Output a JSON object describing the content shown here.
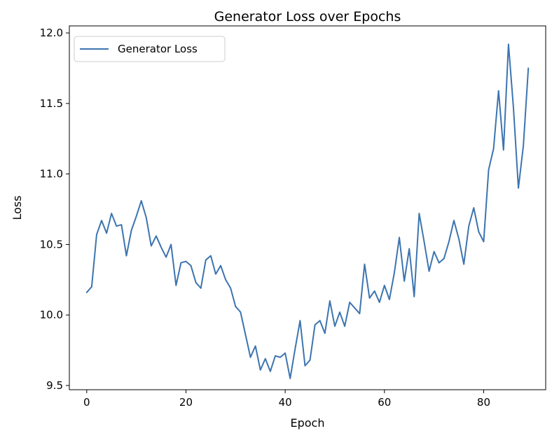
{
  "chart_data": {
    "type": "line",
    "title": "Generator Loss over Epochs",
    "xlabel": "Epoch",
    "ylabel": "Loss",
    "xlim": [
      -3.5,
      92.5
    ],
    "ylim": [
      9.47,
      12.05
    ],
    "xticks": [
      0,
      20,
      40,
      60,
      80
    ],
    "yticks": [
      9.5,
      10.0,
      10.5,
      11.0,
      11.5,
      12.0
    ],
    "ytick_labels": [
      "9.5",
      "10.0",
      "10.5",
      "11.0",
      "11.5",
      "12.0"
    ],
    "grid": false,
    "legend": {
      "position": "upper-left"
    },
    "series": [
      {
        "name": "Generator Loss",
        "color": "#3c74b0",
        "x": [
          0,
          1,
          2,
          3,
          4,
          5,
          6,
          7,
          8,
          9,
          10,
          11,
          12,
          13,
          14,
          15,
          16,
          17,
          18,
          19,
          20,
          21,
          22,
          23,
          24,
          25,
          26,
          27,
          28,
          29,
          30,
          31,
          32,
          33,
          34,
          35,
          36,
          37,
          38,
          39,
          40,
          41,
          42,
          43,
          44,
          45,
          46,
          47,
          48,
          49,
          50,
          51,
          52,
          53,
          54,
          55,
          56,
          57,
          58,
          59,
          60,
          61,
          62,
          63,
          64,
          65,
          66,
          67,
          68,
          69,
          70,
          71,
          72,
          73,
          74,
          75,
          76,
          77,
          78,
          79,
          80,
          81,
          82,
          83,
          84,
          85,
          86,
          87,
          88,
          89
        ],
        "values": [
          10.16,
          10.2,
          10.57,
          10.67,
          10.58,
          10.72,
          10.63,
          10.64,
          10.42,
          10.6,
          10.7,
          10.81,
          10.69,
          10.49,
          10.56,
          10.48,
          10.41,
          10.5,
          10.21,
          10.37,
          10.38,
          10.35,
          10.23,
          10.19,
          10.39,
          10.42,
          10.29,
          10.35,
          10.25,
          10.19,
          10.06,
          10.02,
          9.86,
          9.7,
          9.78,
          9.61,
          9.69,
          9.6,
          9.71,
          9.7,
          9.73,
          9.55,
          9.76,
          9.96,
          9.64,
          9.68,
          9.93,
          9.96,
          9.87,
          10.1,
          9.92,
          10.02,
          9.92,
          10.09,
          10.05,
          10.01,
          10.36,
          10.12,
          10.17,
          10.09,
          10.21,
          10.11,
          10.3,
          10.55,
          10.24,
          10.47,
          10.13,
          10.72,
          10.52,
          10.31,
          10.45,
          10.37,
          10.4,
          10.52,
          10.67,
          10.54,
          10.36,
          10.63,
          10.76,
          10.59,
          10.52,
          11.03,
          11.18,
          11.59,
          11.17,
          11.92,
          11.47,
          10.9,
          11.2,
          11.75
        ]
      }
    ]
  }
}
